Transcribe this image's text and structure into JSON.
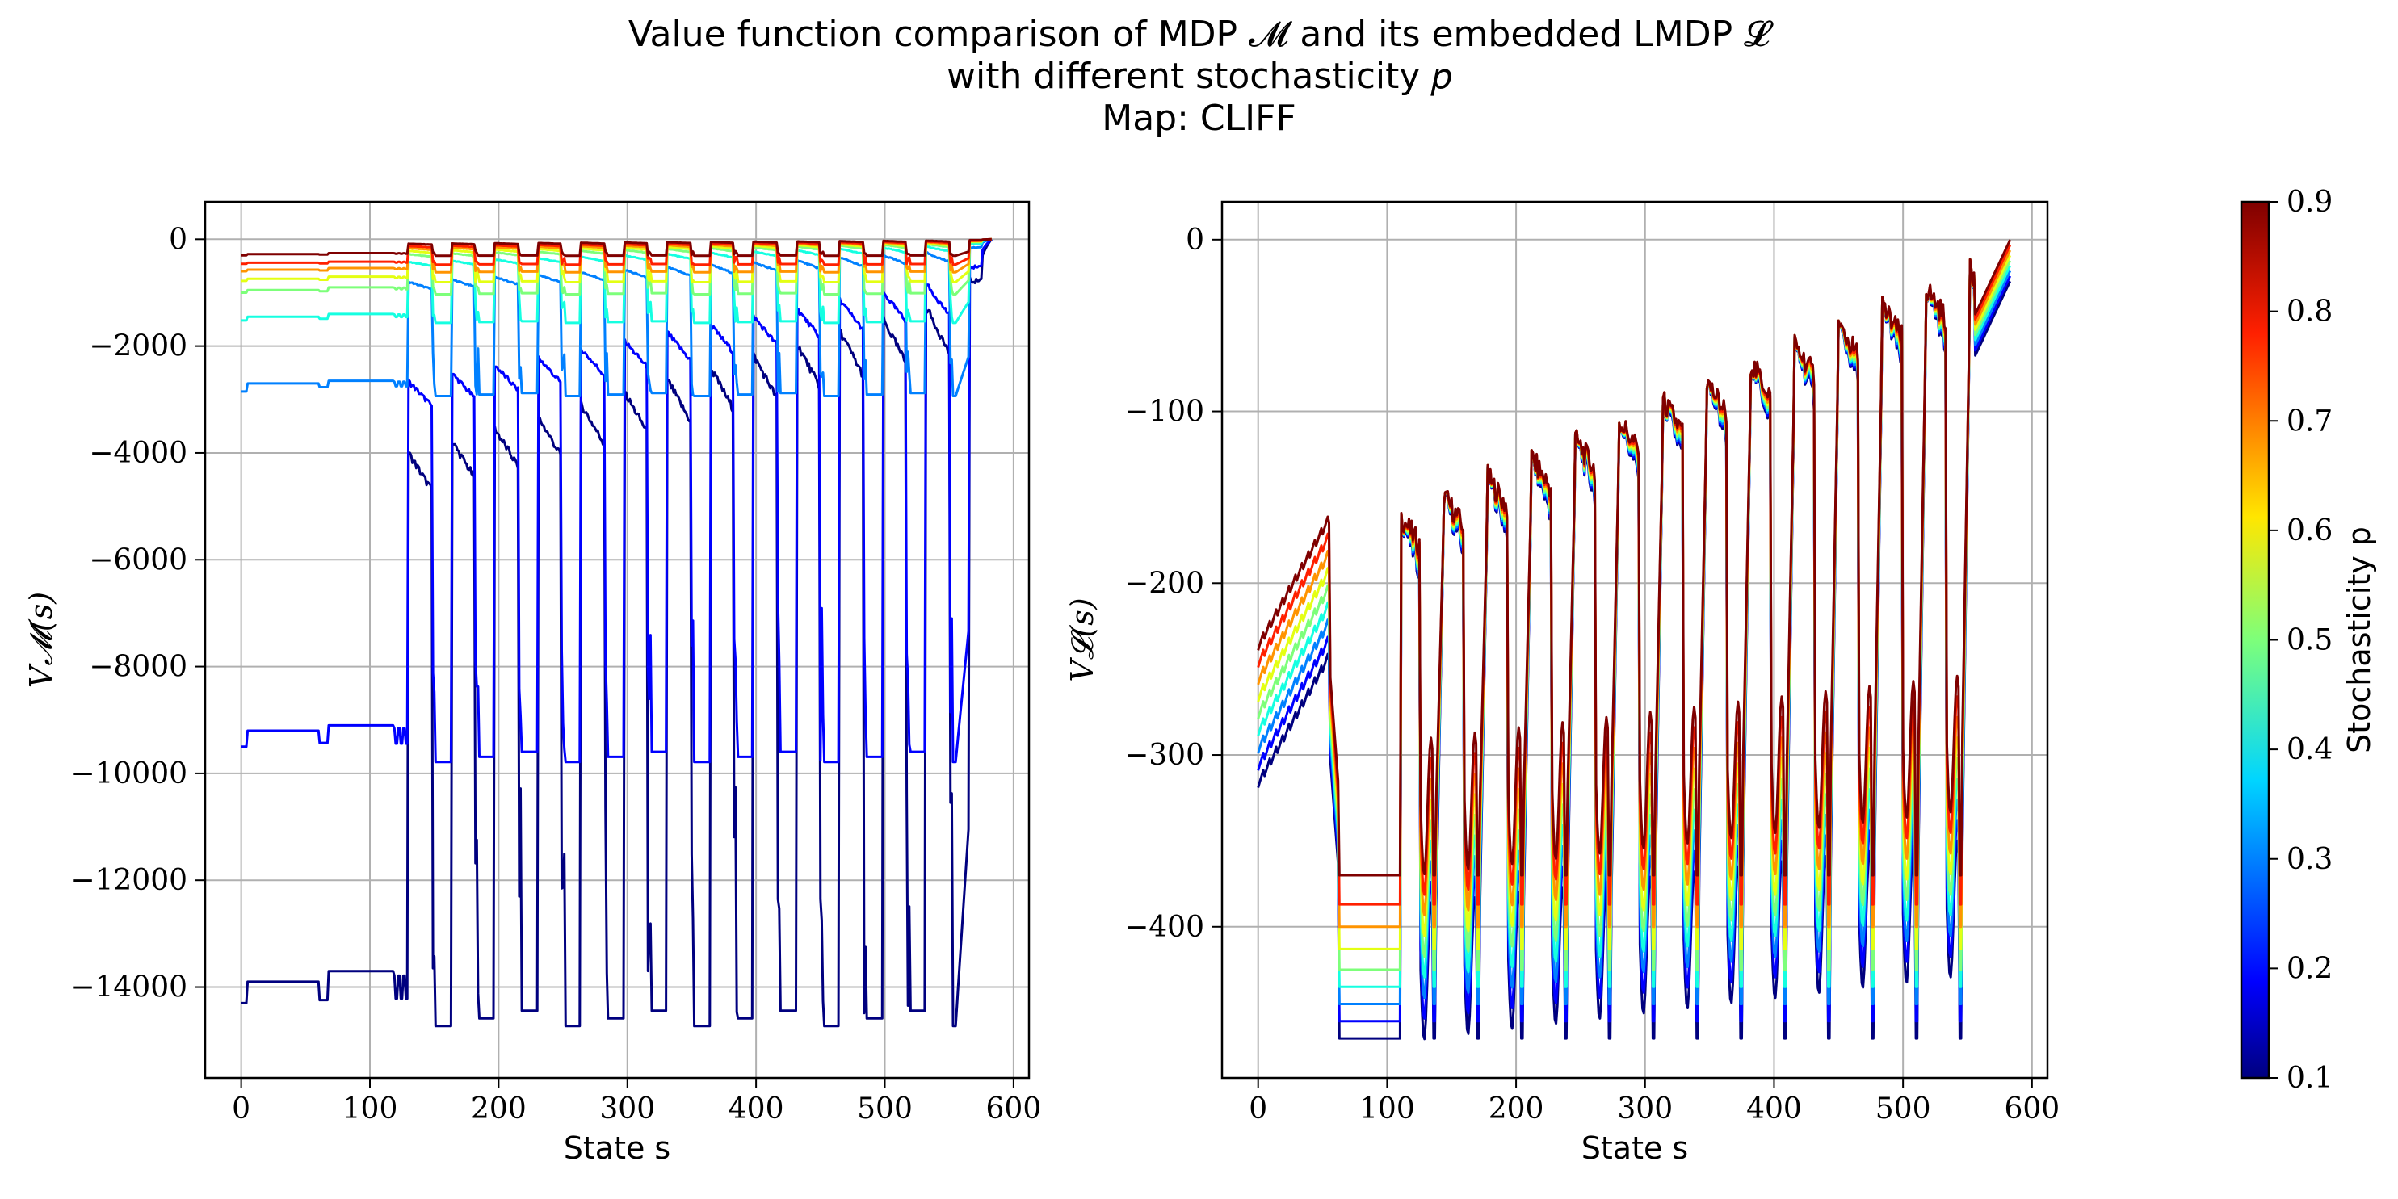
{
  "title": {
    "line1": "Value function comparison of MDP 𝓜 and its embedded LMDP 𝓛",
    "line2": "with different stochasticity 𝑝",
    "line3": "Map: CLIFF"
  },
  "chart_data": [
    {
      "type": "line",
      "panel": "left",
      "xlabel": "State s",
      "ylabel": "V𝓜(s)",
      "xlim": [
        -28,
        612
      ],
      "ylim": [
        -15700,
        700
      ],
      "xticks": [
        0,
        100,
        200,
        300,
        400,
        500,
        600
      ],
      "yticks": [
        0,
        -2000,
        -4000,
        -6000,
        -8000,
        -10000,
        -12000,
        -14000
      ],
      "x_range": [
        0,
        583
      ],
      "grid": true,
      "series": [
        {
          "p": 0.1,
          "color": "#00007f",
          "levels": [
            -14300,
            -13900,
            -13700
          ]
        },
        {
          "p": 0.2,
          "color": "#0000ff",
          "levels": [
            -9500,
            -9200,
            -9100
          ]
        },
        {
          "p": 0.3,
          "color": "#0080ff",
          "levels": [
            -2850,
            -2700,
            -2650
          ]
        },
        {
          "p": 0.4,
          "color": "#15ffe1",
          "levels": [
            -1520,
            -1450,
            -1400
          ]
        },
        {
          "p": 0.5,
          "color": "#7dff7a",
          "levels": [
            -1000,
            -950,
            -900
          ]
        },
        {
          "p": 0.6,
          "color": "#e4ff13",
          "levels": [
            -780,
            -740,
            -700
          ]
        },
        {
          "p": 0.7,
          "color": "#ff9400",
          "levels": [
            -600,
            -570,
            -540
          ]
        },
        {
          "p": 0.8,
          "color": "#ff2000",
          "levels": [
            -460,
            -440,
            -420
          ]
        },
        {
          "p": 0.9,
          "color": "#7f0000",
          "levels": [
            -300,
            -280,
            -260
          ]
        }
      ]
    },
    {
      "type": "line",
      "panel": "right",
      "xlabel": "State s",
      "ylabel": "V𝓛(s)",
      "xlim": [
        -28,
        612
      ],
      "ylim": [
        -488,
        22
      ],
      "xticks": [
        0,
        100,
        200,
        300,
        400,
        500,
        600
      ],
      "yticks": [
        0,
        -100,
        -200,
        -300,
        -400
      ],
      "x_range": [
        0,
        583
      ],
      "grid": true,
      "series": [
        {
          "p": 0.1,
          "color": "#00007f",
          "start": -315,
          "ledge": -465
        },
        {
          "p": 0.2,
          "color": "#0000ff",
          "start": -305,
          "ledge": -455
        },
        {
          "p": 0.3,
          "color": "#0080ff",
          "start": -295,
          "ledge": -445
        },
        {
          "p": 0.4,
          "color": "#15ffe1",
          "start": -285,
          "ledge": -435
        },
        {
          "p": 0.5,
          "color": "#7dff7a",
          "start": -275,
          "ledge": -425
        },
        {
          "p": 0.6,
          "color": "#e4ff13",
          "start": -265,
          "ledge": -413
        },
        {
          "p": 0.7,
          "color": "#ff9400",
          "start": -255,
          "ledge": -400
        },
        {
          "p": 0.8,
          "color": "#ff2000",
          "start": -245,
          "ledge": -387
        },
        {
          "p": 0.9,
          "color": "#7f0000",
          "start": -235,
          "ledge": -370
        }
      ]
    }
  ],
  "colorbar": {
    "label": "Stochasticity p",
    "range": [
      0.1,
      0.9
    ],
    "ticks": [
      "0.1",
      "0.2",
      "0.3",
      "0.4",
      "0.5",
      "0.6",
      "0.7",
      "0.8",
      "0.9"
    ],
    "colormap": "jet"
  }
}
